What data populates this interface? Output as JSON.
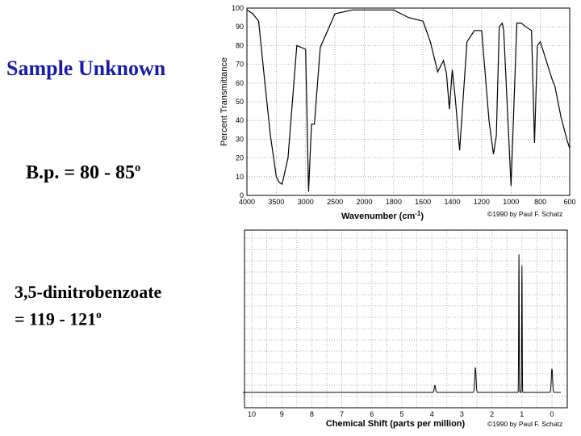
{
  "slide": {
    "title": "Sample Unknown",
    "bp_prefix": "B.p. = 80 - 85",
    "bp_sup": "o",
    "deriv_line1": "3,5-dinitrobenzoate",
    "deriv_line2_prefix": "= 119 - 121",
    "deriv_sup": "o"
  },
  "chart_data": [
    {
      "type": "line",
      "ylabel": "Percent Transmittance",
      "xlabel": "Wavenumber (cm-1)",
      "xlabel_main": "Wavenumber (cm",
      "xlabel_sup": "-1",
      "xlabel_close": ")",
      "credit": "©1990 by Paul F. Schatz",
      "x_ticks": [
        "4000",
        "3500",
        "3000",
        "2500",
        "2000",
        "1800",
        "1600",
        "1400",
        "1200",
        "1000",
        "800",
        "600"
      ],
      "y_ticks": [
        "0",
        "10",
        "20",
        "30",
        "40",
        "50",
        "60",
        "70",
        "80",
        "90",
        "100"
      ],
      "ylim": [
        0,
        100
      ],
      "grid": true,
      "x": [
        4000,
        3900,
        3800,
        3700,
        3600,
        3500,
        3450,
        3400,
        3300,
        3150,
        3000,
        2950,
        2900,
        2850,
        2750,
        2500,
        2200,
        2000,
        1800,
        1700,
        1600,
        1550,
        1500,
        1460,
        1440,
        1420,
        1400,
        1380,
        1350,
        1300,
        1250,
        1200,
        1150,
        1120,
        1100,
        1080,
        1060,
        1050,
        1000,
        960,
        930,
        900,
        860,
        840,
        820,
        800,
        760,
        720,
        700,
        660,
        620,
        600
      ],
      "y": [
        99,
        97,
        93,
        62,
        32,
        10,
        7,
        6,
        20,
        80,
        78,
        2,
        38,
        38,
        79,
        97,
        99,
        99,
        99,
        95,
        93,
        82,
        66,
        72,
        65,
        46,
        67,
        52,
        24,
        82,
        88,
        88,
        40,
        22,
        32,
        90,
        92,
        88,
        5,
        92,
        92,
        90,
        88,
        28,
        80,
        82,
        72,
        62,
        58,
        42,
        30,
        25
      ]
    },
    {
      "type": "line",
      "xlabel": "Chemical Shift (parts per million)",
      "credit": "©1990 by Paul F. Schatz",
      "x_ticks": [
        "10",
        "9",
        "8",
        "7",
        "6",
        "5",
        "4",
        "3",
        "2",
        "1",
        "0"
      ],
      "xlim": [
        10,
        0
      ],
      "grid": true,
      "peaks": [
        {
          "ppm": 3.9,
          "height": 5
        },
        {
          "ppm": 2.55,
          "height": 18
        },
        {
          "ppm": 1.1,
          "height": 100
        },
        {
          "ppm": 1.0,
          "height": 92
        },
        {
          "ppm": 0.0,
          "height": 17
        }
      ]
    }
  ]
}
